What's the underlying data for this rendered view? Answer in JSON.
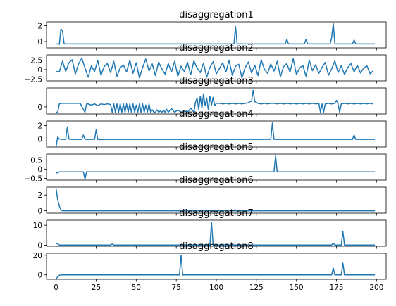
{
  "chart_data": [
    {
      "type": "line",
      "title": "disaggregation1",
      "xlim": [
        -6,
        206
      ],
      "ylim": [
        -0.8,
        2.5
      ],
      "yticks": [
        0,
        2
      ],
      "color": "#1f77b4",
      "series": [
        {
          "x": [
            0,
            1,
            2,
            3,
            4,
            5,
            6,
            7,
            8,
            10,
            20,
            40,
            60,
            80,
            100,
            110,
            111,
            112,
            113,
            114,
            120,
            130,
            140,
            143,
            144,
            145,
            146,
            150,
            155,
            156,
            157,
            158,
            160,
            170,
            171,
            172,
            173,
            174,
            175,
            180,
            185,
            186,
            187,
            190,
            199
          ],
          "y": [
            -0.3,
            -0.3,
            -0.35,
            1.6,
            1.3,
            -0.3,
            -0.3,
            -0.3,
            -0.3,
            -0.3,
            -0.3,
            -0.3,
            -0.3,
            -0.3,
            -0.3,
            -0.3,
            -0.3,
            1.9,
            -0.3,
            -0.3,
            -0.3,
            -0.3,
            -0.3,
            -0.3,
            0.3,
            -0.3,
            -0.3,
            -0.3,
            -0.3,
            0.3,
            -0.3,
            -0.3,
            -0.3,
            -0.3,
            -0.3,
            0.5,
            2.3,
            -0.3,
            -0.3,
            -0.3,
            -0.3,
            0.2,
            -0.3,
            -0.3,
            -0.3
          ]
        }
      ]
    },
    {
      "type": "line",
      "title": "disaggregation2",
      "xlim": [
        -6,
        206
      ],
      "ylim": [
        -3.0,
        3.9
      ],
      "yticks": [
        -2.5,
        0.0,
        2.5
      ],
      "color": "#1f77b4",
      "series": [
        {
          "x": [
            0,
            2,
            4,
            6,
            8,
            10,
            12,
            14,
            16,
            18,
            20,
            22,
            24,
            26,
            28,
            30,
            32,
            34,
            36,
            38,
            40,
            42,
            44,
            46,
            48,
            50,
            52,
            54,
            56,
            58,
            60,
            62,
            64,
            66,
            68,
            70,
            72,
            74,
            76,
            78,
            80,
            82,
            84,
            86,
            88,
            90,
            92,
            94,
            96,
            98,
            100,
            102,
            104,
            106,
            108,
            110,
            112,
            114,
            116,
            118,
            120,
            122,
            124,
            126,
            128,
            130,
            132,
            134,
            136,
            138,
            140,
            142,
            144,
            146,
            148,
            150,
            152,
            154,
            156,
            158,
            160,
            162,
            164,
            166,
            168,
            170,
            172,
            174,
            176,
            178,
            180,
            182,
            184,
            186,
            188,
            190,
            192,
            194,
            196,
            198
          ],
          "y": [
            -0.5,
            -0.6,
            2.2,
            -0.5,
            1.8,
            2.6,
            -1.2,
            1.5,
            3.0,
            0.5,
            -2.0,
            1.0,
            -0.5,
            2.4,
            -1.5,
            0.8,
            1.6,
            -0.8,
            2.2,
            -1.8,
            0.5,
            1.2,
            -0.6,
            2.5,
            -1.0,
            1.8,
            -2.2,
            0.6,
            2.8,
            -0.4,
            1.5,
            -1.6,
            2.0,
            0.2,
            -1.2,
            1.6,
            -0.6,
            2.2,
            -1.8,
            0.9,
            -0.5,
            1.9,
            -1.4,
            2.3,
            0.4,
            -0.8,
            1.7,
            -2.0,
            0.6,
            2.1,
            -1.1,
            0.3,
            1.8,
            -0.6,
            2.4,
            -1.5,
            0.9,
            1.4,
            -2.2,
            0.5,
            2.0,
            -0.9,
            1.2,
            -1.6,
            2.6,
            0.1,
            -1.0,
            1.5,
            -0.4,
            2.2,
            -1.9,
            0.8,
            1.6,
            -0.7,
            2.9,
            -1.3,
            0.4,
            1.1,
            -1.8,
            2.5,
            -0.3,
            1.3,
            -1.0,
            0.6,
            1.9,
            -1.5,
            0.2,
            2.3,
            -0.8,
            1.0,
            -1.3,
            0.5,
            1.6,
            -0.6,
            1.2,
            -0.9,
            0.4,
            1.0,
            -1.1,
            -0.3
          ]
        }
      ]
    },
    {
      "type": "line",
      "title": "disaggregation3",
      "xlim": [
        -6,
        206
      ],
      "ylim": [
        -1.2,
        3.2
      ],
      "yticks": [
        0
      ],
      "color": "#1f77b4",
      "series": [
        {
          "x": [
            0,
            1,
            2,
            3,
            4,
            5,
            10,
            15,
            18,
            19,
            20,
            22,
            24,
            26,
            28,
            30,
            32,
            34,
            35,
            36,
            37,
            38,
            39,
            40,
            41,
            42,
            43,
            44,
            45,
            46,
            47,
            48,
            49,
            50,
            51,
            52,
            53,
            54,
            55,
            56,
            57,
            58,
            59,
            60,
            61,
            62,
            63,
            64,
            65,
            66,
            67,
            68,
            69,
            70,
            72,
            74,
            76,
            78,
            80,
            82,
            84,
            86,
            87,
            88,
            89,
            90,
            91,
            92,
            93,
            94,
            95,
            96,
            97,
            98,
            99,
            100,
            102,
            104,
            106,
            108,
            110,
            112,
            114,
            116,
            118,
            120,
            122,
            123,
            124,
            126,
            128,
            130,
            132,
            134,
            136,
            138,
            140,
            142,
            144,
            146,
            148,
            150,
            152,
            154,
            156,
            158,
            160,
            162,
            164,
            165,
            166,
            167,
            168,
            170,
            172,
            174,
            175,
            176,
            177,
            178,
            180,
            182,
            184,
            186,
            188,
            190,
            192,
            194,
            196,
            198
          ],
          "y": [
            -0.9,
            -0.9,
            0.5,
            0.6,
            0.6,
            0.6,
            0.6,
            0.6,
            -0.9,
            0.5,
            0.5,
            0.3,
            0.5,
            0.2,
            0.5,
            0.4,
            0.5,
            0.4,
            -0.9,
            0.5,
            -0.9,
            0.5,
            -0.9,
            0.5,
            -0.9,
            0.5,
            -0.9,
            0.5,
            -0.9,
            0.5,
            -0.9,
            0.5,
            -0.9,
            0.3,
            -0.9,
            0.5,
            -0.9,
            0.5,
            -0.9,
            0.3,
            -0.9,
            0.5,
            -0.9,
            -0.5,
            -0.9,
            -0.9,
            -0.5,
            -0.9,
            -0.7,
            -0.9,
            -0.6,
            -0.9,
            -0.4,
            -0.9,
            -0.3,
            -0.9,
            -0.5,
            -0.9,
            -0.7,
            -0.9,
            -0.2,
            -0.9,
            0.8,
            1.5,
            -0.4,
            1.8,
            -0.2,
            2.2,
            0.2,
            1.5,
            -0.5,
            1.8,
            0.3,
            1.6,
            0.2,
            0.6,
            0.6,
            0.5,
            0.6,
            0.5,
            0.6,
            0.5,
            0.6,
            0.5,
            0.6,
            0.7,
            1.0,
            2.8,
            0.9,
            0.6,
            0.5,
            0.6,
            0.5,
            0.6,
            0.6,
            0.5,
            0.6,
            0.5,
            0.6,
            0.5,
            0.6,
            0.5,
            0.6,
            0.5,
            0.6,
            0.5,
            0.6,
            0.5,
            0.6,
            -0.9,
            0.5,
            -0.9,
            0.5,
            0.6,
            0.5,
            0.6,
            1.1,
            0.5,
            -0.9,
            0.5,
            0.6,
            0.5,
            0.6,
            0.5,
            0.6,
            0.5,
            0.6,
            0.5,
            0.6,
            0.5
          ]
        }
      ]
    },
    {
      "type": "line",
      "title": "disaggregation4",
      "xlim": [
        -6,
        206
      ],
      "ylim": [
        -1.2,
        2.7
      ],
      "yticks": [
        0,
        2
      ],
      "color": "#1f77b4",
      "series": [
        {
          "x": [
            0,
            1,
            2,
            4,
            6,
            7,
            8,
            9,
            10,
            12,
            14,
            16,
            17,
            18,
            20,
            22,
            24,
            25,
            26,
            28,
            30,
            35,
            40,
            50,
            60,
            70,
            80,
            90,
            100,
            110,
            120,
            130,
            133,
            134,
            135,
            136,
            137,
            138,
            140,
            150,
            160,
            170,
            180,
            185,
            186,
            187,
            188,
            190,
            199
          ],
          "y": [
            -1.1,
            0.3,
            0.0,
            -0.05,
            -0.05,
            1.8,
            0.0,
            -0.05,
            -0.05,
            -0.05,
            -0.05,
            -0.05,
            0.6,
            -0.05,
            -0.05,
            -0.05,
            -0.05,
            1.4,
            -0.05,
            -0.1,
            -0.05,
            -0.05,
            -0.05,
            -0.05,
            -0.05,
            -0.05,
            -0.05,
            -0.05,
            -0.05,
            -0.05,
            -0.05,
            -0.05,
            -0.05,
            -0.05,
            2.4,
            -0.05,
            -0.05,
            -0.05,
            -0.05,
            -0.05,
            -0.05,
            -0.05,
            -0.05,
            -0.05,
            0.6,
            -0.05,
            -0.05,
            -0.05,
            -0.05
          ]
        }
      ]
    },
    {
      "type": "line",
      "title": "disaggregation5",
      "xlim": [
        -6,
        206
      ],
      "ylim": [
        -0.6,
        0.82
      ],
      "yticks": [
        -0.5,
        0.0,
        0.5
      ],
      "color": "#1f77b4",
      "series": [
        {
          "x": [
            0,
            1,
            2,
            10,
            17,
            18,
            19,
            20,
            30,
            40,
            50,
            60,
            70,
            80,
            90,
            100,
            110,
            120,
            130,
            136,
            137,
            138,
            139,
            140,
            150,
            160,
            170,
            180,
            190,
            199
          ],
          "y": [
            -0.2,
            -0.2,
            -0.15,
            -0.15,
            -0.15,
            -0.55,
            -0.15,
            -0.15,
            -0.15,
            -0.15,
            -0.15,
            -0.15,
            -0.15,
            -0.15,
            -0.15,
            -0.15,
            -0.15,
            -0.15,
            -0.15,
            -0.15,
            0.72,
            -0.15,
            -0.15,
            -0.15,
            -0.15,
            -0.15,
            -0.15,
            -0.15,
            -0.15,
            -0.15
          ]
        }
      ]
    },
    {
      "type": "line",
      "title": "disaggregation6",
      "xlim": [
        -6,
        206
      ],
      "ylim": [
        -0.3,
        3.0
      ],
      "yticks": [
        0,
        2
      ],
      "color": "#1f77b4",
      "series": [
        {
          "x": [
            0,
            1,
            2,
            3,
            4,
            5,
            10,
            20,
            40,
            60,
            80,
            100,
            120,
            140,
            160,
            180,
            199
          ],
          "y": [
            2.8,
            1.4,
            0.6,
            0.1,
            0.0,
            0.0,
            0.0,
            0.0,
            0.0,
            0.0,
            0.0,
            0.0,
            0.0,
            0.0,
            0.0,
            0.0,
            0.0
          ]
        }
      ]
    },
    {
      "type": "line",
      "title": "disaggregation7",
      "xlim": [
        -6,
        206
      ],
      "ylim": [
        -0.5,
        12.5
      ],
      "yticks": [
        0,
        10
      ],
      "color": "#1f77b4",
      "series": [
        {
          "x": [
            0,
            1,
            2,
            3,
            10,
            30,
            34,
            35,
            36,
            50,
            70,
            90,
            96,
            97,
            98,
            100,
            120,
            140,
            160,
            172,
            173,
            174,
            178,
            179,
            180,
            181,
            190,
            199
          ],
          "y": [
            0.8,
            0.8,
            0.1,
            0.1,
            0.1,
            0.1,
            0.1,
            0.6,
            0.1,
            0.1,
            0.1,
            0.1,
            0.1,
            11.5,
            0.1,
            0.1,
            0.1,
            0.1,
            0.1,
            0.1,
            1.0,
            0.1,
            0.1,
            7.0,
            0.1,
            0.1,
            0.1,
            0.1
          ]
        }
      ]
    },
    {
      "type": "line",
      "title": "disaggregation8",
      "xlim": [
        -6,
        206
      ],
      "ylim": [
        -4.5,
        22.0
      ],
      "yticks": [
        0,
        20
      ],
      "color": "#1f77b4",
      "series": [
        {
          "x": [
            0,
            1,
            2,
            3,
            4,
            10,
            30,
            50,
            70,
            77,
            78,
            79,
            80,
            100,
            120,
            140,
            160,
            170,
            172,
            173,
            174,
            176,
            178,
            179,
            180,
            190,
            199
          ],
          "y": [
            -4.0,
            -2.0,
            -0.5,
            0.0,
            0.0,
            0.0,
            0.0,
            0.0,
            0.0,
            0.0,
            20.0,
            0.0,
            0.0,
            0.0,
            0.0,
            0.0,
            0.0,
            0.0,
            0.0,
            7.0,
            0.0,
            0.0,
            0.0,
            12.0,
            0.0,
            0.0,
            0.0
          ]
        }
      ]
    }
  ],
  "x_axis": {
    "ticks": [
      0,
      25,
      50,
      75,
      100,
      125,
      150,
      175,
      200
    ]
  }
}
